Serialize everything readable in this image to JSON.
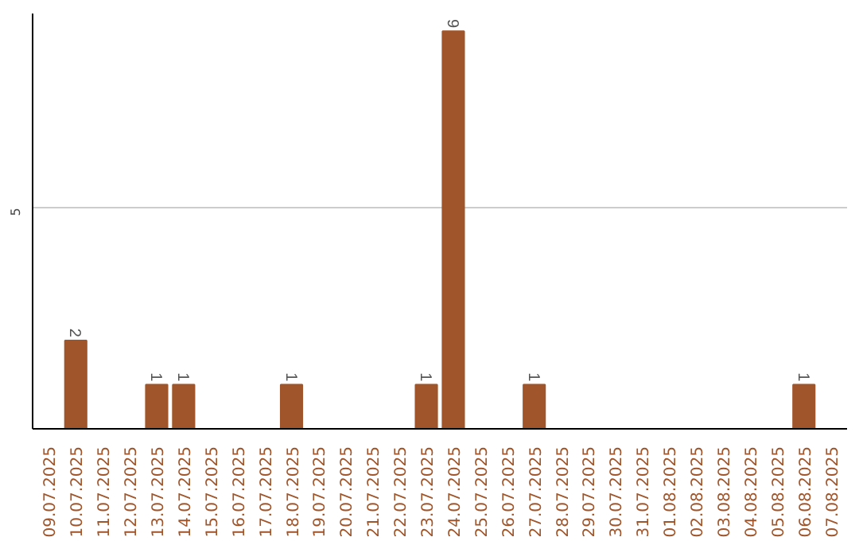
{
  "chart_data": {
    "type": "bar",
    "categories": [
      "09.07.2025",
      "10.07.2025",
      "11.07.2025",
      "12.07.2025",
      "13.07.2025",
      "14.07.2025",
      "15.07.2025",
      "16.07.2025",
      "17.07.2025",
      "18.07.2025",
      "19.07.2025",
      "20.07.2025",
      "21.07.2025",
      "22.07.2025",
      "23.07.2025",
      "24.07.2025",
      "25.07.2025",
      "26.07.2025",
      "27.07.2025",
      "28.07.2025",
      "29.07.2025",
      "30.07.2025",
      "31.07.2025",
      "01.08.2025",
      "02.08.2025",
      "03.08.2025",
      "04.08.2025",
      "05.08.2025",
      "06.08.2025",
      "07.08.2025"
    ],
    "values": [
      0,
      2,
      0,
      0,
      1,
      1,
      0,
      0,
      0,
      1,
      0,
      0,
      0,
      0,
      1,
      9,
      0,
      0,
      1,
      0,
      0,
      0,
      0,
      0,
      0,
      0,
      0,
      0,
      1,
      0
    ],
    "value_labels": [
      null,
      "2",
      null,
      null,
      "1",
      "1",
      null,
      null,
      null,
      "1",
      null,
      null,
      null,
      null,
      "1",
      "9",
      null,
      null,
      "1",
      null,
      null,
      null,
      null,
      null,
      null,
      null,
      null,
      null,
      "1",
      null
    ],
    "color": "#a0552a",
    "ylim": [
      0,
      9.4
    ],
    "yticks": [
      5
    ],
    "grid": "y"
  }
}
